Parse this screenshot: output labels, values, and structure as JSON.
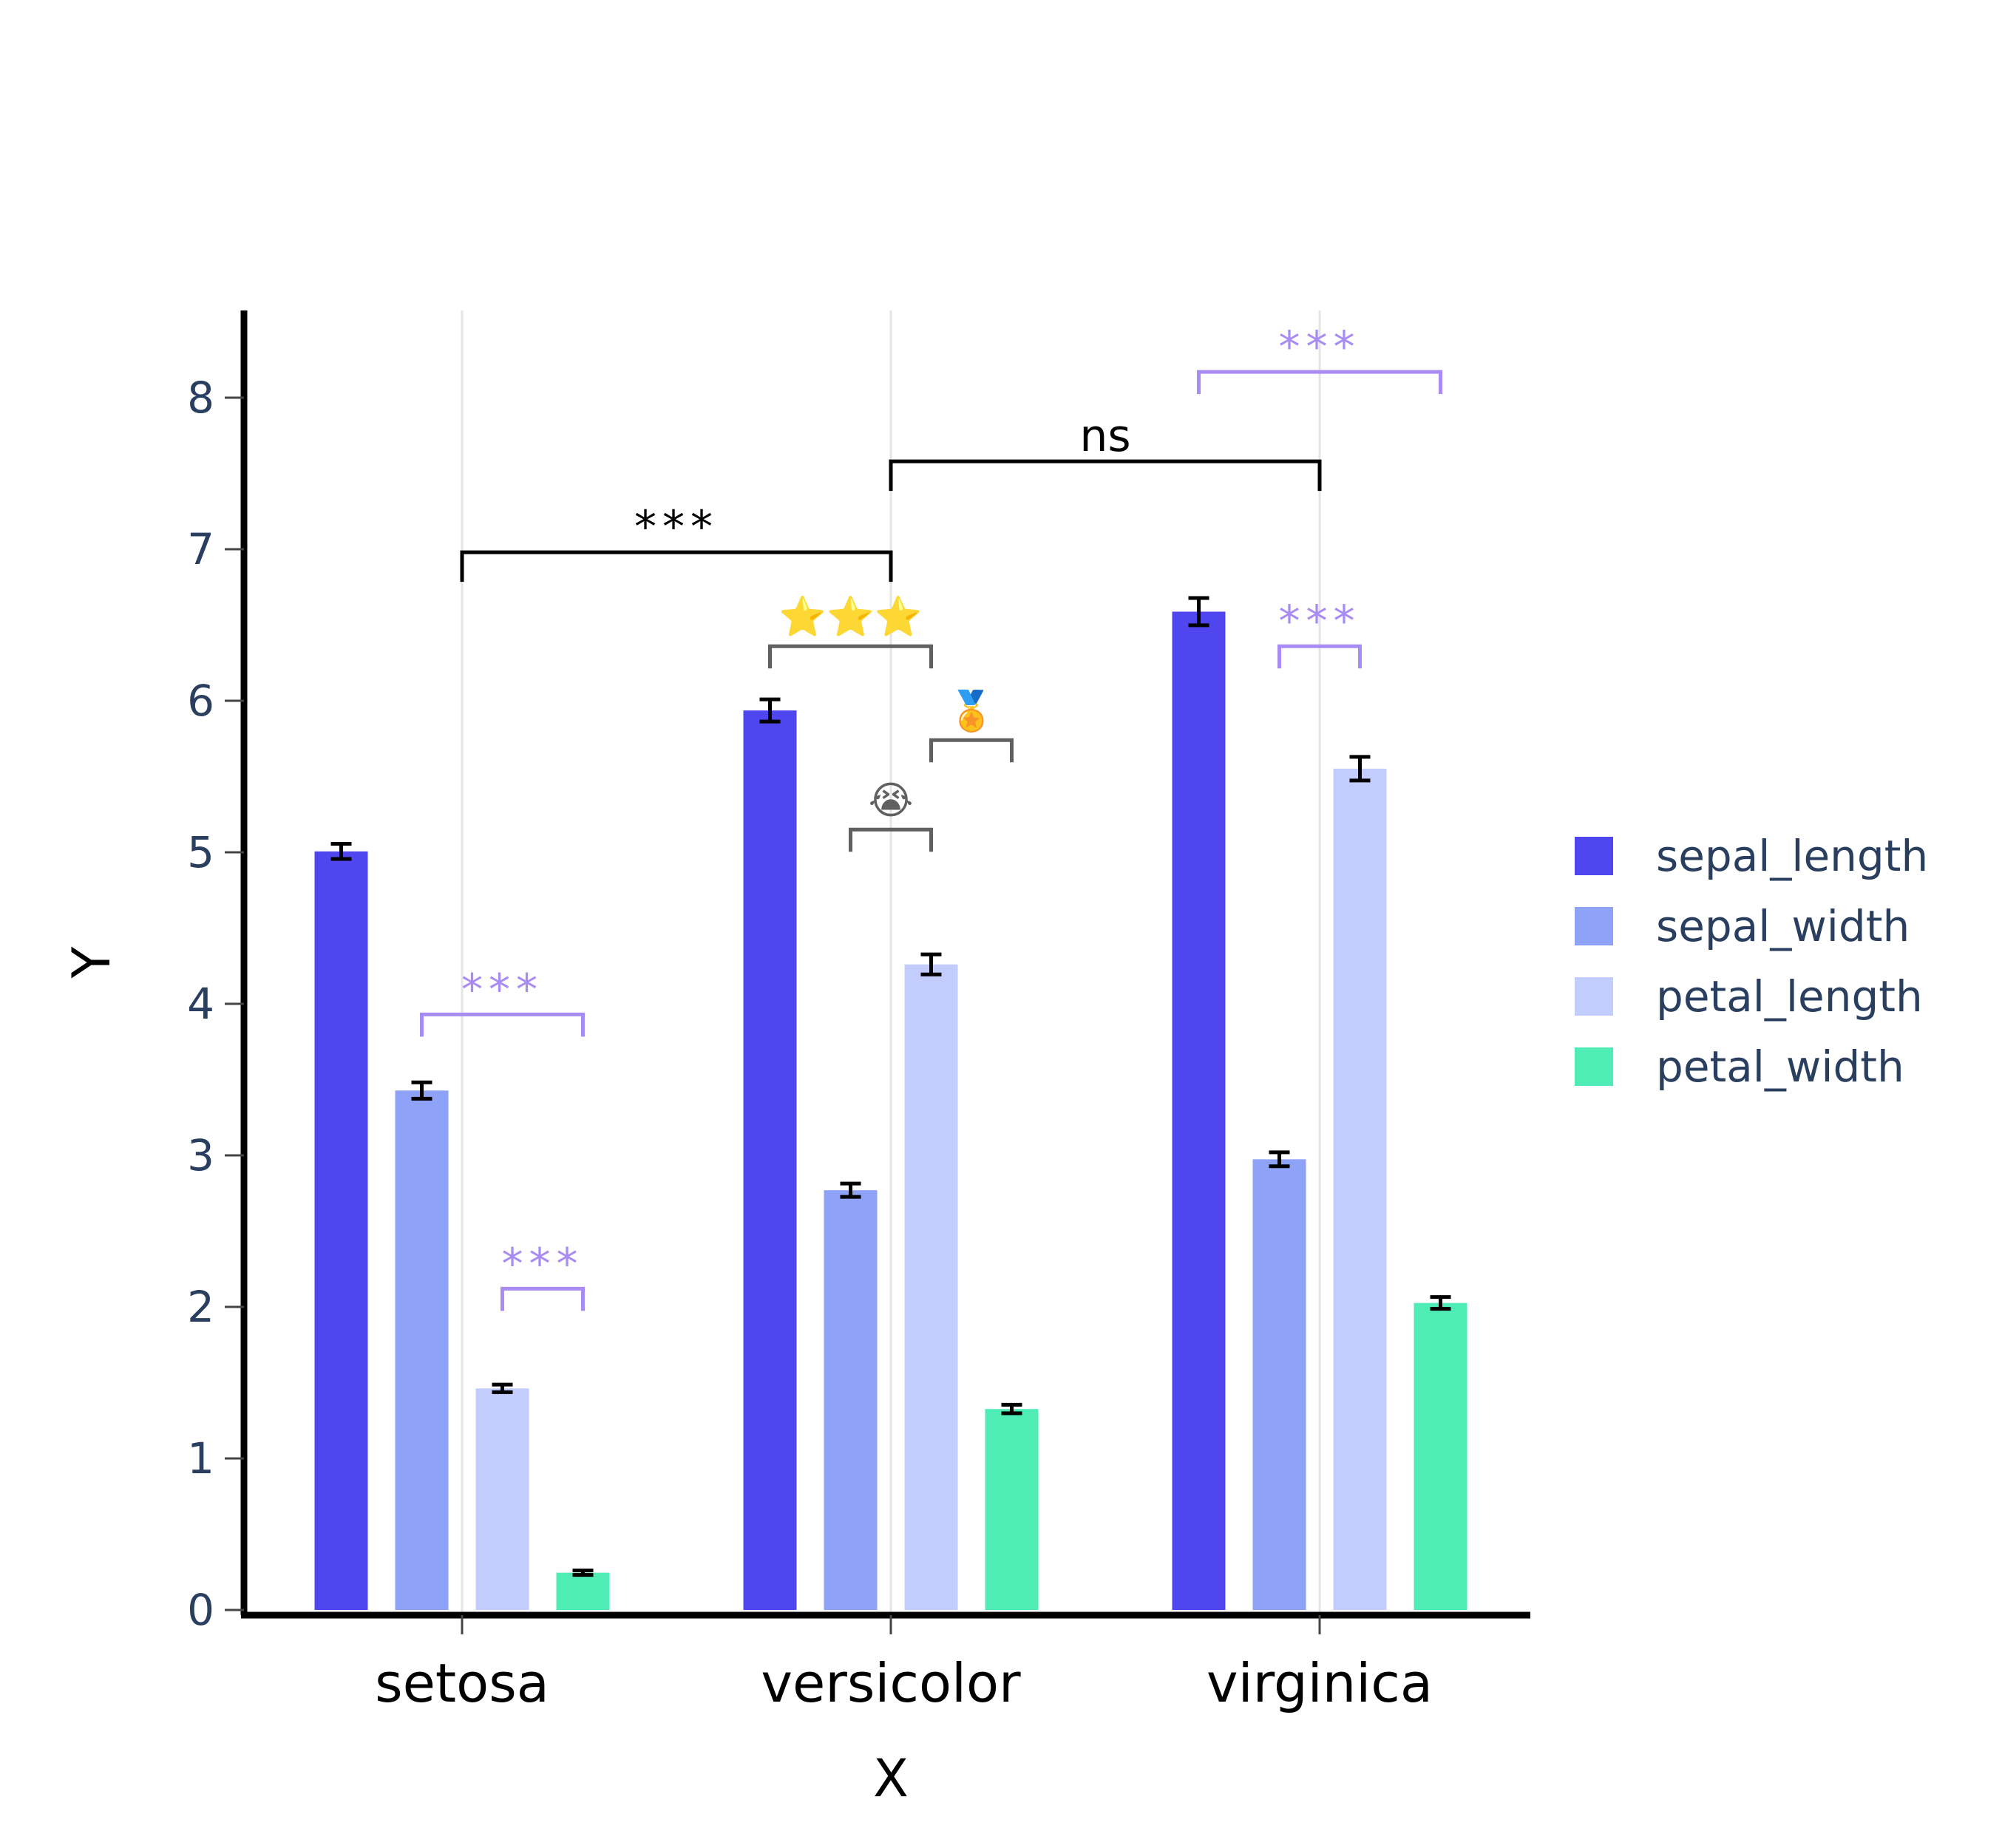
{
  "chart_data": {
    "type": "bar",
    "title": "",
    "xlabel": "X",
    "ylabel": "Y",
    "ylim": [
      0,
      8.55
    ],
    "yticks": [
      0,
      1,
      2,
      3,
      4,
      5,
      6,
      7,
      8
    ],
    "grid": "vertical gridlines at categories",
    "legend_position": "right",
    "categories": [
      "setosa",
      "versicolor",
      "virginica"
    ],
    "series": [
      {
        "name": "sepal_length",
        "color": "#5046f0",
        "values": [
          5.006,
          5.936,
          6.588
        ],
        "errors": [
          0.05,
          0.073,
          0.09
        ]
      },
      {
        "name": "sepal_width",
        "color": "#8ea2f7",
        "values": [
          3.428,
          2.77,
          2.974
        ],
        "errors": [
          0.054,
          0.044,
          0.046
        ]
      },
      {
        "name": "petal_length",
        "color": "#c3cdfd",
        "values": [
          1.462,
          4.26,
          5.552
        ],
        "errors": [
          0.025,
          0.066,
          0.078
        ]
      },
      {
        "name": "petal_width",
        "color": "#50ecb6",
        "values": [
          0.246,
          1.326,
          2.026
        ],
        "errors": [
          0.015,
          0.028,
          0.039
        ]
      }
    ],
    "annotations": [
      {
        "kind": "group",
        "from": "setosa",
        "to": "versicolor",
        "y": 6.98,
        "label": "***",
        "color": "#000000"
      },
      {
        "kind": "group",
        "from": "versicolor",
        "to": "virginica",
        "y": 7.58,
        "label": "ns",
        "color": "#000000"
      },
      {
        "kind": "bar",
        "category": "setosa",
        "from": "sepal_width",
        "to": "petal_width",
        "y": 3.93,
        "label": "***",
        "color": "#a98bf4"
      },
      {
        "kind": "bar",
        "category": "setosa",
        "from": "petal_length",
        "to": "petal_width",
        "y": 2.12,
        "label": "***",
        "color": "#a98bf4"
      },
      {
        "kind": "bar",
        "category": "versicolor",
        "from": "sepal_length",
        "to": "petal_length",
        "y": 6.36,
        "label": "⭐⭐⭐",
        "color": "#606060"
      },
      {
        "kind": "bar",
        "category": "versicolor",
        "from": "petal_length",
        "to": "petal_width",
        "y": 5.74,
        "label": "🏅",
        "color": "#606060"
      },
      {
        "kind": "bar",
        "category": "versicolor",
        "from": "sepal_width",
        "to": "petal_length",
        "y": 5.15,
        "label": "😭",
        "color": "#606060"
      },
      {
        "kind": "bar",
        "category": "virginica",
        "from": "sepal_length",
        "to": "petal_width",
        "y": 8.17,
        "label": "***",
        "color": "#a98bf4"
      },
      {
        "kind": "bar",
        "category": "virginica",
        "from": "sepal_width",
        "to": "petal_length",
        "y": 6.36,
        "label": "***",
        "color": "#a98bf4"
      }
    ]
  }
}
